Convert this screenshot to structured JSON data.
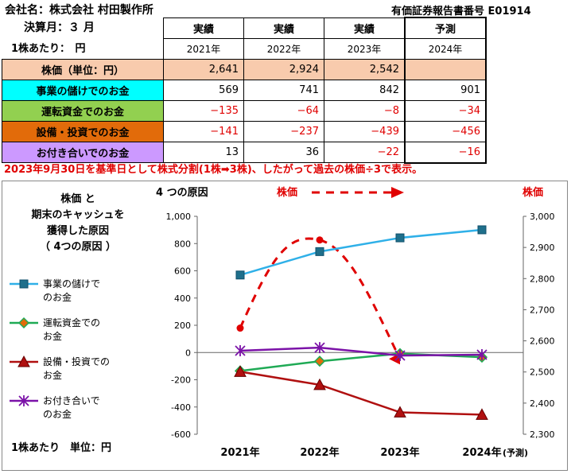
{
  "header": {
    "company": "会社名：株式会社 村田製作所",
    "doc_number": "有価証券報告書番号 E01914",
    "fiscal_month": "決算月：３ 月",
    "per_share": "1株あたり：　円"
  },
  "table": {
    "col_kind": [
      "実績",
      "実績",
      "実績",
      "予測"
    ],
    "col_year": [
      "2021年",
      "2022年",
      "2023年",
      "2024年"
    ],
    "rows": [
      {
        "label": "株価（単位：円）",
        "bg": "#f8cbad",
        "values": [
          "2,641",
          "2,924",
          "2,542",
          ""
        ]
      },
      {
        "label": "事業の儲けでのお金",
        "bg": "#00ffff",
        "values": [
          "569",
          "741",
          "842",
          "901"
        ]
      },
      {
        "label": "運転資金でのお金",
        "bg": "#92d050",
        "values": [
          "−135",
          "−64",
          "−8",
          "−34"
        ]
      },
      {
        "label": "設備・投資でのお金",
        "bg": "#e26b0a",
        "values": [
          "−141",
          "−237",
          "−439",
          "−456"
        ]
      },
      {
        "label": "お付き合いでのお金",
        "bg": "#cc99ff",
        "values": [
          "13",
          "36",
          "−22",
          "−16"
        ]
      }
    ]
  },
  "note": "2023年9月30日を基準日として株式分割(1株➡3株)、したがって過去の株価÷3で表示。",
  "chart_data": {
    "type": "line",
    "title_lines": [
      "株価 と",
      "期末のキャッシュを",
      "獲得した原因",
      "（ 4つの原因 ）"
    ],
    "left_axis_label": "4 つの原因",
    "arrow_label": "株価",
    "right_axis_label": "株価",
    "bottom_label": "1株あたり　単位：円",
    "categories": [
      "2021年",
      "2022年",
      "2023年",
      "2024年"
    ],
    "forecast_suffix": "(予測)",
    "ylim_left": [
      -600,
      1000
    ],
    "yticks_left": [
      "1,000",
      "800",
      "600",
      "400",
      "200",
      "0",
      "-200",
      "-400",
      "-600"
    ],
    "ylim_right": [
      2300,
      3000
    ],
    "yticks_right": [
      "3,000",
      "2,900",
      "2,800",
      "2,700",
      "2,600",
      "2,500",
      "2,400",
      "2,300"
    ],
    "series": [
      {
        "name": "事業の儲けでのお金",
        "legend": [
          "事業の儲けで",
          "のお金"
        ],
        "color": "#2fb0e8",
        "marker": "square",
        "values": [
          569,
          741,
          842,
          901
        ]
      },
      {
        "name": "運転資金でのお金",
        "legend": [
          "運転資金での",
          "お金"
        ],
        "color": "#1faa55",
        "marker": "diamond",
        "values": [
          -135,
          -64,
          -8,
          -34
        ]
      },
      {
        "name": "設備・投資でのお金",
        "legend": [
          "設備・投資での",
          "お金"
        ],
        "color": "#b01010",
        "marker": "triangle",
        "values": [
          -141,
          -237,
          -439,
          -456
        ]
      },
      {
        "name": "お付き合いでのお金",
        "legend": [
          "お付き合いで",
          "のお金"
        ],
        "color": "#7b12a8",
        "marker": "star",
        "values": [
          13,
          36,
          -22,
          -16
        ]
      }
    ],
    "stock_price": {
      "axis": "right",
      "color": "#e00000",
      "values": [
        2641,
        2924,
        2542
      ]
    }
  }
}
